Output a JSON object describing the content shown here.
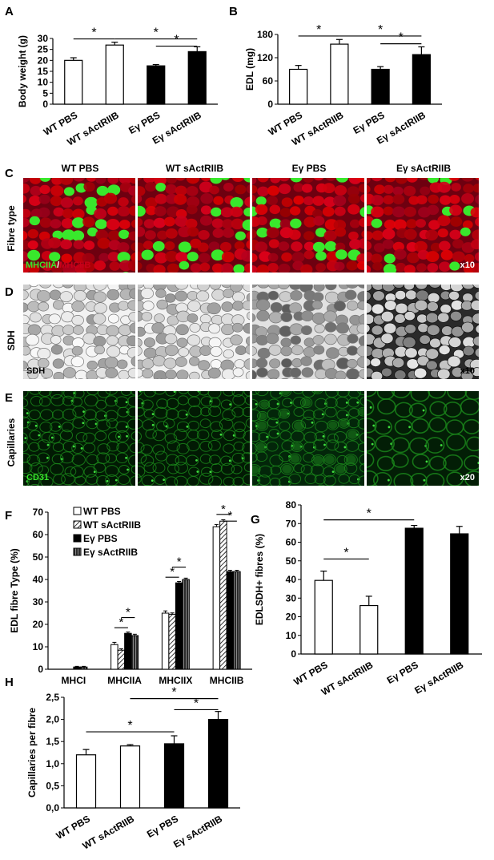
{
  "panel_letters": [
    "A",
    "B",
    "C",
    "D",
    "E",
    "F",
    "G",
    "H"
  ],
  "micro": {
    "col_headers": [
      "WT PBS",
      "WT sActRIIB",
      "Eγ PBS",
      "Eγ sActRIIB"
    ],
    "row_labels": [
      "Fibre type",
      "SDH",
      "Capillaries"
    ],
    "fibre_label_a": "MHCIIA",
    "fibre_sep": "/",
    "fibre_label_b": "MHCIIB",
    "sdh_label": "SDH",
    "cd31_label": "CD31",
    "mag_c": "x10",
    "mag_d": "x10",
    "mag_e": "x20",
    "colors": {
      "red": "#c8001a",
      "green": "#39e82c",
      "cd31": "#1b8a1b",
      "sdh": "#8a8a8a"
    }
  },
  "chart_data": [
    {
      "id": "A",
      "type": "bar",
      "categories": [
        "WT PBS",
        "WT sActRIIB",
        "Eγ PBS",
        "Eγ sActRIIB"
      ],
      "values": [
        20,
        27,
        17.5,
        24
      ],
      "errors": [
        1.2,
        1.3,
        0.6,
        2.2
      ],
      "fills": [
        "white",
        "white",
        "black",
        "black"
      ],
      "ylabel": "Body weight (g)",
      "ylim": [
        0,
        30
      ],
      "yticks": [
        "0",
        "5",
        "10",
        "15",
        "20",
        "25",
        "30"
      ],
      "sig": [
        {
          "from": 0,
          "to": 1,
          "y": 29.8,
          "label": "*"
        },
        {
          "from": 1,
          "to": 3,
          "y": 29.8,
          "label": "*"
        },
        {
          "from": 2,
          "to": 3,
          "y": 26.5,
          "label": "*"
        }
      ]
    },
    {
      "id": "B",
      "type": "bar",
      "categories": [
        "WT PBS",
        "WT sActRIIB",
        "Eγ PBS",
        "Eγ sActRIIB"
      ],
      "values": [
        90,
        155,
        90,
        128
      ],
      "errors": [
        10,
        12,
        7,
        20
      ],
      "fills": [
        "white",
        "white",
        "black",
        "black"
      ],
      "ylabel": "EDL (mg)",
      "ylim": [
        0,
        180
      ],
      "yticks": [
        "0",
        "60",
        "120",
        "180"
      ],
      "sig": [
        {
          "from": 0,
          "to": 1,
          "y": 176,
          "label": "*"
        },
        {
          "from": 1,
          "to": 3,
          "y": 176,
          "label": "*"
        },
        {
          "from": 2,
          "to": 3,
          "y": 156,
          "label": "*"
        }
      ]
    },
    {
      "id": "F",
      "type": "bar",
      "categories": [
        "MHCI",
        "MHCIIA",
        "MHCIIX",
        "MHCIIB"
      ],
      "series": [
        {
          "name": "WT PBS",
          "values": [
            0,
            11,
            25,
            63.5
          ],
          "errors": [
            0,
            1,
            1,
            1
          ]
        },
        {
          "name": "WT sActRIIB",
          "values": [
            0,
            8.5,
            24.5,
            66
          ],
          "errors": [
            0,
            0.6,
            0.6,
            0.6
          ]
        },
        {
          "name": "Eγ PBS",
          "values": [
            1,
            16,
            38.5,
            43.5
          ],
          "errors": [
            0.3,
            0.6,
            0.6,
            0.6
          ]
        },
        {
          "name": "Eγ sActRIIB",
          "values": [
            1,
            15,
            40,
            43.5
          ],
          "errors": [
            0.3,
            0.6,
            0.6,
            0.6
          ]
        }
      ],
      "patterns": [
        "white",
        "hatch",
        "black",
        "grey"
      ],
      "ylabel": "EDL fibre Type (%)",
      "ylim": [
        0,
        70
      ],
      "yticks": [
        "0",
        "10",
        "20",
        "30",
        "40",
        "50",
        "60",
        "70"
      ],
      "sig": [
        {
          "group": 1,
          "from": 0,
          "to": 2,
          "y": 18.5,
          "label": "*"
        },
        {
          "group": 1,
          "from": 1,
          "to": 3,
          "y": 23,
          "label": "*"
        },
        {
          "group": 2,
          "from": 0,
          "to": 2,
          "y": 41,
          "label": "*"
        },
        {
          "group": 2,
          "from": 1,
          "to": 3,
          "y": 45.5,
          "label": "*"
        },
        {
          "group": 3,
          "from": 0,
          "to": 2,
          "y": 69,
          "label": "*"
        },
        {
          "group": 3,
          "from": 1,
          "to": 3,
          "y": 66,
          "label": "*"
        }
      ]
    },
    {
      "id": "G",
      "type": "bar",
      "categories": [
        "WT PBS",
        "WT sActRIIB",
        "Eγ PBS",
        "Eγ sActRIIB"
      ],
      "values": [
        39.5,
        26,
        67.5,
        64.5
      ],
      "errors": [
        5,
        5,
        1.5,
        4
      ],
      "fills": [
        "white",
        "white",
        "black",
        "black"
      ],
      "ylabel": "EDLSDH+ fibres (%)",
      "ylim": [
        0,
        80
      ],
      "yticks": [
        "0",
        "10",
        "20",
        "30",
        "40",
        "50",
        "60",
        "70",
        "80"
      ],
      "sig": [
        {
          "from": 0,
          "to": 1,
          "y": 51,
          "label": "*"
        },
        {
          "from": 0,
          "to": 2,
          "y": 72,
          "label": "*"
        }
      ]
    },
    {
      "id": "H",
      "type": "bar",
      "categories": [
        "WT PBS",
        "WT sActRIIB",
        "Eγ PBS",
        "Eγ sActRIIB"
      ],
      "values": [
        1.2,
        1.4,
        1.45,
        2.0
      ],
      "errors": [
        0.12,
        0.03,
        0.18,
        0.18
      ],
      "fills": [
        "white",
        "white",
        "black",
        "black"
      ],
      "ylabel": "Capillaries per fibre",
      "ylim": [
        0,
        2.5
      ],
      "yticks": [
        "0,0",
        "0,5",
        "1,0",
        "1,5",
        "2,0",
        "2,5"
      ],
      "sig": [
        {
          "from": 0,
          "to": 2,
          "y": 1.72,
          "label": "*"
        },
        {
          "from": 1,
          "to": 3,
          "y": 2.47,
          "label": "*"
        },
        {
          "from": 2,
          "to": 3,
          "y": 2.22,
          "label": "*"
        }
      ]
    }
  ]
}
